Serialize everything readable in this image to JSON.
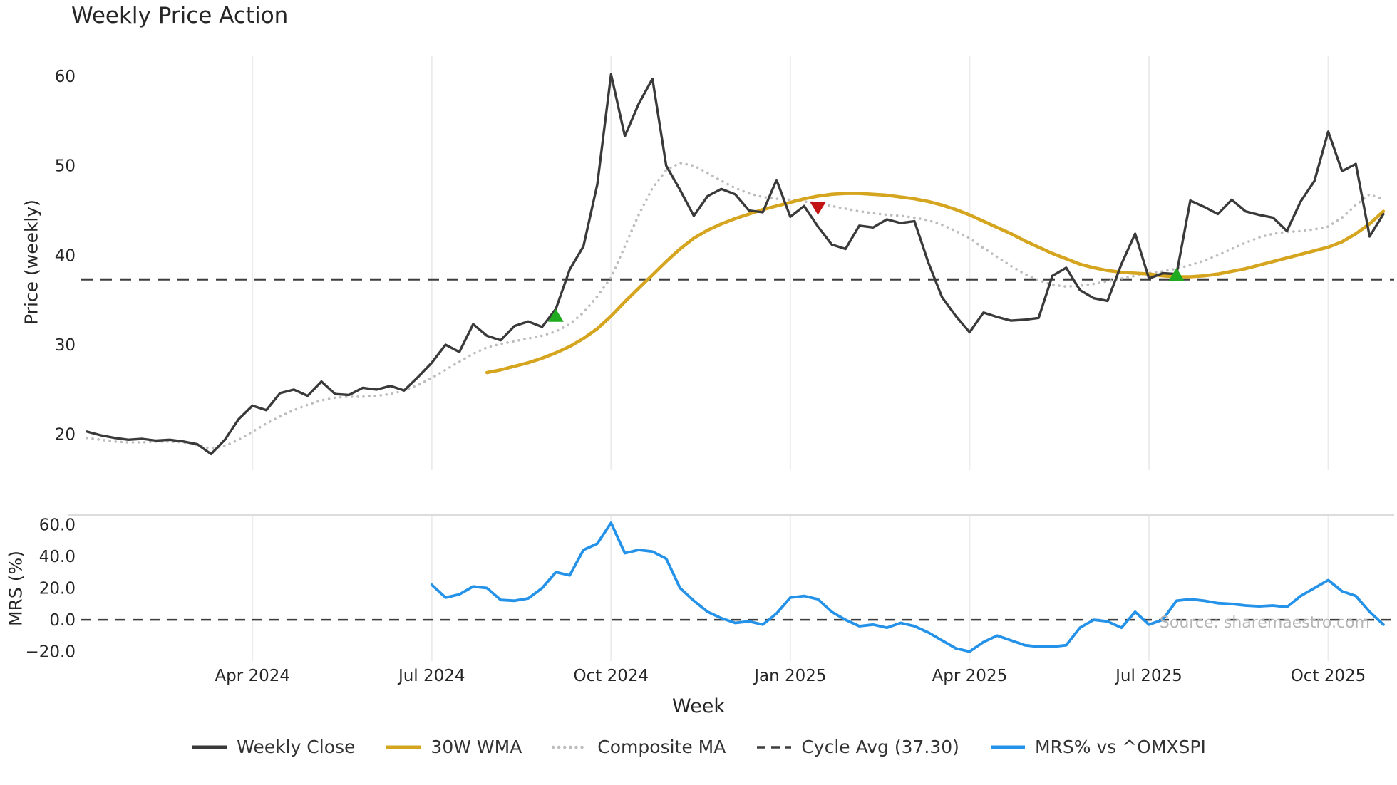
{
  "source": {
    "text": "Source: sharemaestro.com"
  },
  "legend": {
    "items": [
      {
        "label": "Weekly Close",
        "swatch": "solid",
        "color": "#3a3a3a"
      },
      {
        "label": "30W WMA",
        "swatch": "solid",
        "color": "#d6a51f"
      },
      {
        "label": "Composite MA",
        "swatch": "dotted",
        "color": "#bdbdbd"
      },
      {
        "label": "Cycle Avg (37.30)",
        "swatch": "dashed",
        "color": "#3d3d3d"
      },
      {
        "label": "MRS% vs ^OMXSPI",
        "swatch": "solid",
        "color": "#2492e8"
      }
    ]
  },
  "chart_data": [
    {
      "type": "line",
      "panel": "price",
      "title": "Weekly Price Action",
      "ylabel": "Price (weekly)",
      "ylim": [
        16,
        62.3
      ],
      "grid": "vertical",
      "yticks": [
        {
          "v": 20,
          "label": "20"
        },
        {
          "v": 30,
          "label": "30"
        },
        {
          "v": 40,
          "label": "40"
        },
        {
          "v": 50,
          "label": "50"
        },
        {
          "v": 60,
          "label": "60"
        }
      ],
      "x_unit": "week_index",
      "x_range_weeks": 95,
      "xticks": [
        {
          "i": 12,
          "label": "Apr 2024"
        },
        {
          "i": 25,
          "label": "Jul 2024"
        },
        {
          "i": 38,
          "label": "Oct 2024"
        },
        {
          "i": 51,
          "label": "Jan 2025"
        },
        {
          "i": 64,
          "label": "Apr 2025"
        },
        {
          "i": 77,
          "label": "Jul 2025"
        },
        {
          "i": 90,
          "label": "Oct 2025"
        }
      ],
      "cycle_avg": 37.3,
      "series": [
        {
          "name": "Weekly Close",
          "color": "#3a3a3a",
          "style": "solid",
          "start_index": 0,
          "values": [
            20.3,
            19.9,
            19.6,
            19.4,
            19.5,
            19.3,
            19.4,
            19.2,
            18.9,
            17.8,
            19.4,
            21.7,
            23.2,
            22.7,
            24.6,
            25.0,
            24.3,
            25.9,
            24.5,
            24.4,
            25.2,
            25.0,
            25.4,
            24.9,
            26.4,
            28.0,
            30.0,
            29.2,
            32.3,
            31.0,
            30.5,
            32.1,
            32.6,
            32.0,
            34.0,
            38.4,
            41.0,
            47.9,
            60.2,
            53.3,
            56.9,
            59.7,
            50.0,
            47.3,
            44.4,
            46.6,
            47.4,
            46.8,
            45.0,
            44.8,
            48.4,
            44.3,
            45.5,
            43.2,
            41.2,
            40.7,
            43.3,
            43.1,
            44.0,
            43.6,
            43.8,
            39.2,
            35.3,
            33.2,
            31.4,
            33.6,
            33.1,
            32.7,
            32.8,
            33.0,
            37.7,
            38.6,
            36.1,
            35.2,
            34.9,
            39.0,
            42.4,
            37.4,
            38.0,
            37.9,
            46.1,
            45.4,
            44.6,
            46.2,
            44.9,
            44.5,
            44.2,
            42.7,
            46.0,
            48.3,
            53.8,
            49.4,
            50.2,
            42.1,
            44.6
          ]
        },
        {
          "name": "30W WMA",
          "color": "#d6a51f",
          "style": "solid",
          "start_index": 29,
          "values": [
            26.9,
            27.2,
            27.6,
            28.0,
            28.5,
            29.1,
            29.8,
            30.7,
            31.8,
            33.2,
            34.8,
            36.3,
            37.8,
            39.3,
            40.7,
            41.9,
            42.8,
            43.5,
            44.1,
            44.6,
            45.1,
            45.5,
            45.9,
            46.3,
            46.6,
            46.8,
            46.9,
            46.9,
            46.8,
            46.7,
            46.5,
            46.3,
            46.0,
            45.6,
            45.1,
            44.5,
            43.8,
            43.1,
            42.4,
            41.6,
            40.9,
            40.2,
            39.6,
            39.0,
            38.6,
            38.3,
            38.1,
            38.0,
            37.9,
            37.7,
            37.6,
            37.6,
            37.7,
            37.9,
            38.2,
            38.5,
            38.9,
            39.3,
            39.7,
            40.1,
            40.5,
            40.9,
            41.5,
            42.4,
            43.5,
            44.9
          ]
        },
        {
          "name": "Composite MA",
          "color": "#bdbdbd",
          "style": "dotted",
          "start_index": 0,
          "values": [
            19.6,
            19.4,
            19.2,
            19.1,
            19.1,
            19.2,
            19.2,
            19.1,
            18.8,
            18.4,
            18.7,
            19.4,
            20.3,
            21.2,
            22.0,
            22.7,
            23.3,
            23.8,
            24.1,
            24.2,
            24.2,
            24.3,
            24.5,
            24.9,
            25.5,
            26.3,
            27.2,
            28.1,
            29.0,
            29.7,
            30.1,
            30.4,
            30.7,
            31.0,
            31.5,
            32.3,
            33.6,
            35.4,
            37.5,
            41.0,
            44.5,
            47.5,
            49.5,
            50.3,
            50.0,
            49.2,
            48.3,
            47.5,
            46.9,
            46.5,
            46.3,
            46.2,
            46.0,
            45.8,
            45.5,
            45.2,
            44.9,
            44.7,
            44.5,
            44.4,
            44.2,
            43.9,
            43.4,
            42.7,
            41.9,
            40.8,
            39.8,
            38.8,
            37.9,
            37.2,
            36.7,
            36.5,
            36.6,
            36.8,
            37.1,
            37.4,
            37.7,
            38.0,
            38.2,
            38.5,
            38.9,
            39.4,
            40.0,
            40.7,
            41.4,
            42.0,
            42.4,
            42.6,
            42.7,
            42.9,
            43.2,
            44.2,
            45.6,
            46.8,
            46.2
          ]
        }
      ],
      "markers": {
        "buy_color": "#1faa1f",
        "sell_color": "#c21414",
        "buy": [
          {
            "week": 34,
            "price": 33.2
          },
          {
            "week": 79,
            "price": 37.8
          }
        ],
        "sell": [
          {
            "week": 53,
            "price": 45.3
          }
        ]
      }
    },
    {
      "type": "line",
      "panel": "mrs",
      "ylabel": "MRS (%)",
      "xlabel": "Week",
      "ylim": [
        -26,
        66
      ],
      "zero_line": 0,
      "yticks": [
        {
          "v": -20,
          "label": "−20.0"
        },
        {
          "v": 0,
          "label": "0.0"
        },
        {
          "v": 20,
          "label": "20.0"
        },
        {
          "v": 40,
          "label": "40.0"
        },
        {
          "v": 60,
          "label": "60.0"
        }
      ],
      "series": [
        {
          "name": "MRS% vs ^OMXSPI",
          "color": "#2492e8",
          "style": "solid",
          "start_index": 25,
          "values": [
            22,
            14,
            16,
            21,
            20,
            12.5,
            12,
            13.5,
            20,
            30,
            28,
            44,
            48,
            61,
            42,
            44,
            43,
            38.5,
            20,
            12,
            5,
            1,
            -2,
            -1,
            -3,
            4,
            14,
            15,
            13,
            5,
            0,
            -4,
            -3,
            -5,
            -2,
            -4,
            -8,
            -13,
            -18,
            -20,
            -14,
            -10,
            -13,
            -16,
            -17,
            -17,
            -16,
            -5,
            0,
            -1,
            -5,
            5,
            -3,
            0,
            12,
            13,
            12,
            10.5,
            10,
            9,
            8.5,
            9,
            8,
            15,
            20,
            25,
            18,
            15,
            5,
            -3
          ]
        }
      ]
    }
  ]
}
